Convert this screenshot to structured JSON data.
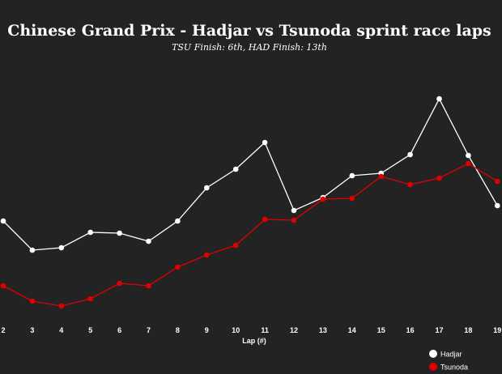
{
  "chart_data": {
    "type": "line",
    "title": "Chinese Grand Prix - Hadjar vs Tsunoda sprint race laps",
    "subtitle": "TSU Finish: 6th, HAD Finish: 13th",
    "x_label": "Lap (#)",
    "categories": [
      "2",
      "3",
      "4",
      "5",
      "6",
      "7",
      "8",
      "9",
      "10",
      "11",
      "12",
      "13",
      "14",
      "15",
      "16",
      "17",
      "18",
      "19"
    ],
    "ylim": [
      0,
      400
    ],
    "series": [
      {
        "name": "Hadjar",
        "color": "#ffffff",
        "values": [
          127,
          91,
          94,
          113,
          112,
          102,
          127,
          168,
          191,
          224,
          140,
          156,
          183,
          186,
          209,
          278,
          208,
          146
        ]
      },
      {
        "name": "Tsunoda",
        "color": "#e00000",
        "values": [
          47,
          28,
          22,
          31,
          50,
          47,
          70,
          85,
          97,
          129,
          128,
          154,
          155,
          182,
          172,
          180,
          198,
          176
        ]
      }
    ]
  }
}
